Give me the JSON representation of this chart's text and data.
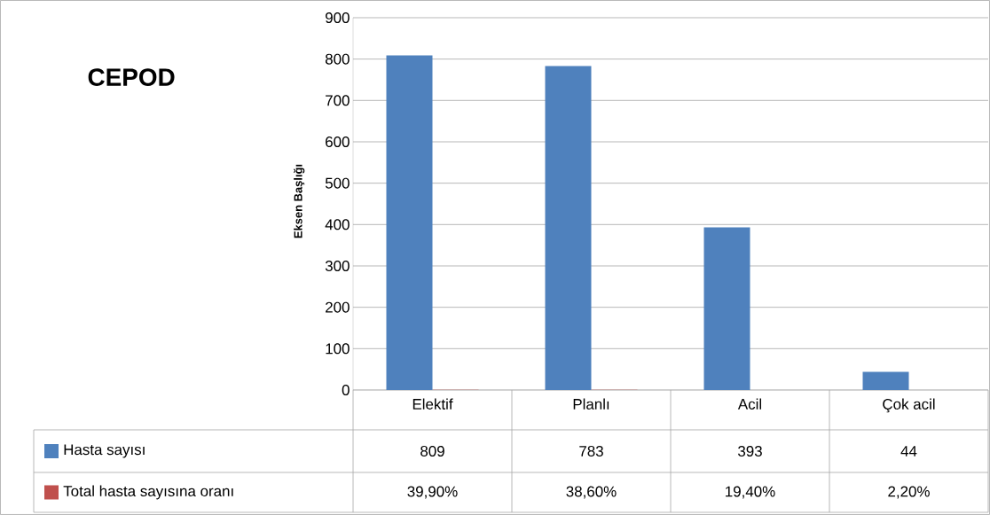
{
  "chart_data": {
    "type": "bar",
    "title": "CEPOD",
    "ylabel": "Eksen Başlığı",
    "categories": [
      "Elektif",
      "Planlı",
      "Acil",
      "Çok acil"
    ],
    "series": [
      {
        "name": "Hasta sayısı",
        "color": "#4f81bd",
        "values": [
          809,
          783,
          393,
          44
        ],
        "value_labels": [
          "809",
          "783",
          "393",
          "44"
        ]
      },
      {
        "name": "Total hasta sayısına oranı",
        "color": "#c0504d",
        "values": [
          0.399,
          0.386,
          0.194,
          0.022
        ],
        "value_labels": [
          "39,90%",
          "38,60%",
          "19,40%",
          "2,20%"
        ]
      }
    ],
    "ylim": [
      0,
      900
    ],
    "yticks": [
      0,
      100,
      200,
      300,
      400,
      500,
      600,
      700,
      800,
      900
    ],
    "grid": "y",
    "legend": "bottom left"
  }
}
